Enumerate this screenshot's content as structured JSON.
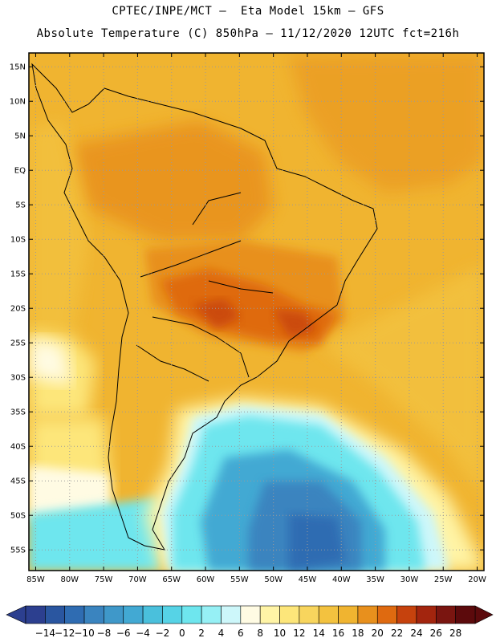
{
  "header": {
    "line1": "CPTEC/INPE/MCT –  Eta Model 15km – GFS",
    "line2": "Absolute Temperature (C) 850hPa – 11/12/2020 12UTC fct=216h"
  },
  "map": {
    "lon_range": [
      -86,
      -19
    ],
    "lat_range": [
      -58,
      17
    ],
    "lat_ticks": [
      {
        "value": 15,
        "label": "15N"
      },
      {
        "value": 10,
        "label": "10N"
      },
      {
        "value": 5,
        "label": "5N"
      },
      {
        "value": 0,
        "label": "EQ"
      },
      {
        "value": -5,
        "label": "5S"
      },
      {
        "value": -10,
        "label": "10S"
      },
      {
        "value": -15,
        "label": "15S"
      },
      {
        "value": -20,
        "label": "20S"
      },
      {
        "value": -25,
        "label": "25S"
      },
      {
        "value": -30,
        "label": "30S"
      },
      {
        "value": -35,
        "label": "35S"
      },
      {
        "value": -40,
        "label": "40S"
      },
      {
        "value": -45,
        "label": "45S"
      },
      {
        "value": -50,
        "label": "50S"
      },
      {
        "value": -55,
        "label": "55S"
      }
    ],
    "lon_ticks": [
      {
        "value": -85,
        "label": "85W"
      },
      {
        "value": -80,
        "label": "80W"
      },
      {
        "value": -75,
        "label": "75W"
      },
      {
        "value": -70,
        "label": "70W"
      },
      {
        "value": -65,
        "label": "65W"
      },
      {
        "value": -60,
        "label": "60W"
      },
      {
        "value": -55,
        "label": "55W"
      },
      {
        "value": -50,
        "label": "50W"
      },
      {
        "value": -45,
        "label": "45W"
      },
      {
        "value": -40,
        "label": "40W"
      },
      {
        "value": -35,
        "label": "35W"
      },
      {
        "value": -30,
        "label": "30W"
      },
      {
        "value": -25,
        "label": "25W"
      },
      {
        "value": -20,
        "label": "20W"
      }
    ],
    "gridlines": "dotted",
    "background_color": "#f0b430"
  },
  "colorbar": {
    "labels": [
      "-14",
      "-12",
      "-10",
      "-8",
      "-6",
      "-4",
      "-2",
      "0",
      "2",
      "4",
      "6",
      "8",
      "10",
      "12",
      "14",
      "16",
      "18",
      "20",
      "22",
      "24",
      "26",
      "28"
    ],
    "colors": [
      "#2c3f8f",
      "#2a56a0",
      "#2f6cb2",
      "#3a84bf",
      "#3f98c9",
      "#42a9d3",
      "#4ac0dc",
      "#56d3e6",
      "#6ee6ee",
      "#96f0f5",
      "#cdf7fa",
      "#fffbe3",
      "#fff4a6",
      "#fde67a",
      "#f8d55d",
      "#f3c23f",
      "#f0b430",
      "#e8901d",
      "#df6a10",
      "#c6420d",
      "#a3250e",
      "#7a1510",
      "#5c0a0c"
    ]
  }
}
